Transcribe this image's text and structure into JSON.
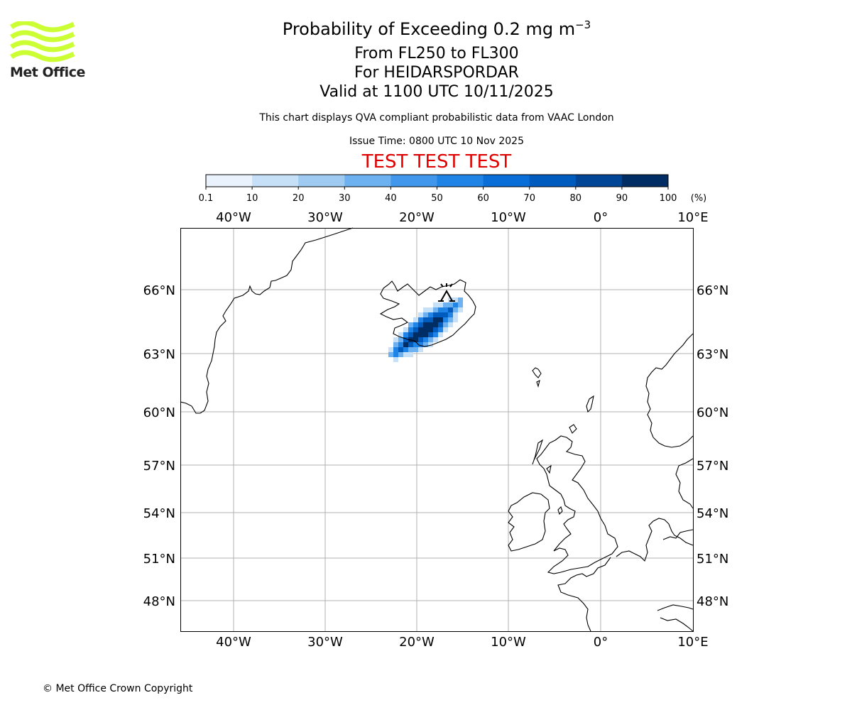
{
  "logo": {
    "text": "Met Office",
    "color": "#ccff33"
  },
  "title": {
    "main_prefix": "Probability of Exceeding 0.2 mg m",
    "main_superscript": "−3",
    "line2": "From FL250 to FL300",
    "line3": "For HEIDARSPORDAR",
    "line4": "Valid at 1100 UTC 10/11/2025"
  },
  "subtitle": "This chart displays QVA compliant probabilistic data from VAAC London",
  "issue_time": "Issue Time: 0800 UTC 10 Nov 2025",
  "test_banner": "TEST TEST TEST",
  "colorbar": {
    "ticks": [
      "0.1",
      "10",
      "20",
      "30",
      "40",
      "50",
      "60",
      "70",
      "80",
      "90",
      "100"
    ],
    "unit": "(%)",
    "colors": [
      "#eaf3fd",
      "#c6e0f8",
      "#9fcbf3",
      "#6eb1f0",
      "#4197ec",
      "#2083e6",
      "#0a6ed8",
      "#005bbf",
      "#004596",
      "#002e64"
    ]
  },
  "map": {
    "lon_labels": [
      "40°W",
      "30°W",
      "20°W",
      "10°W",
      "0°",
      "10°E"
    ],
    "lat_labels": [
      "66°N",
      "63°N",
      "60°N",
      "57°N",
      "54°N",
      "51°N",
      "48°N"
    ],
    "volcano_marker": "volcano-symbol",
    "plume_colors": [
      "#c6e0f8",
      "#6eb1f0",
      "#2083e6",
      "#005bbf",
      "#002e64"
    ]
  },
  "copyright": "© Met Office Crown Copyright"
}
